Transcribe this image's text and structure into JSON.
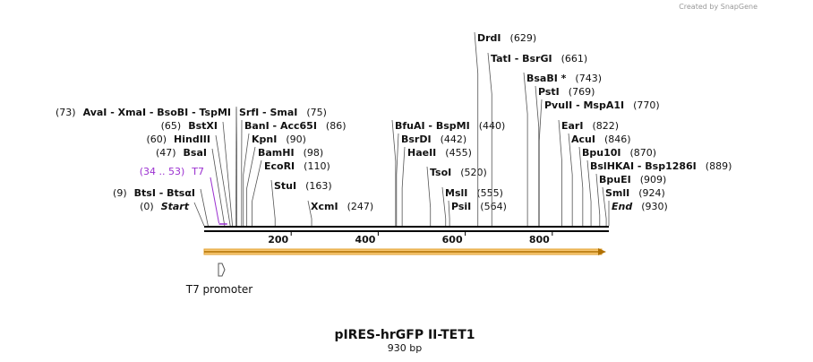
{
  "watermark": "Created by SnapGene",
  "map": {
    "title": "pIRES-hrGFP II-TET1",
    "length": 930,
    "length_label": "930 bp",
    "ticks": [
      200,
      400,
      600,
      800
    ],
    "sites_left": [
      {
        "name": "AvaI  -  XmaI  -  BsoBI  -  TspMI",
        "pos": 73,
        "pos_label": "(73)"
      },
      {
        "name": "BstXI",
        "pos": 65,
        "pos_label": "(65)"
      },
      {
        "name": "HindIII",
        "pos": 60,
        "pos_label": "(60)"
      },
      {
        "name": "BsaI",
        "pos": 47,
        "pos_label": "(47)"
      },
      {
        "name": "BtsI  -  BtsαI",
        "pos": 9,
        "pos_label": "(9)"
      },
      {
        "name": "Start",
        "pos": 0,
        "pos_label": "(0)"
      }
    ],
    "sites_right": [
      {
        "name": "SrfI  -  SmaI",
        "pos": 75,
        "pos_label": "(75)"
      },
      {
        "name": "BanI  -  Acc65I",
        "pos": 86,
        "pos_label": "(86)"
      },
      {
        "name": "KpnI",
        "pos": 90,
        "pos_label": "(90)"
      },
      {
        "name": "BamHI",
        "pos": 98,
        "pos_label": "(98)"
      },
      {
        "name": "EcoRI",
        "pos": 110,
        "pos_label": "(110)"
      },
      {
        "name": "StuI",
        "pos": 163,
        "pos_label": "(163)"
      },
      {
        "name": "XcmI",
        "pos": 247,
        "pos_label": "(247)"
      },
      {
        "name": "BfuAI  -  BspMI",
        "pos": 440,
        "pos_label": "(440)"
      },
      {
        "name": "BsrDI",
        "pos": 442,
        "pos_label": "(442)"
      },
      {
        "name": "HaeII",
        "pos": 455,
        "pos_label": "(455)"
      },
      {
        "name": "TsoI",
        "pos": 520,
        "pos_label": "(520)"
      },
      {
        "name": "MslI",
        "pos": 555,
        "pos_label": "(555)"
      },
      {
        "name": "PsiI",
        "pos": 564,
        "pos_label": "(564)"
      },
      {
        "name": "DrdI",
        "pos": 629,
        "pos_label": "(629)"
      },
      {
        "name": "TatI  -  BsrGI",
        "pos": 661,
        "pos_label": "(661)"
      },
      {
        "name": "BsaBI *",
        "pos": 743,
        "pos_label": "(743)"
      },
      {
        "name": "PstI",
        "pos": 769,
        "pos_label": "(769)"
      },
      {
        "name": "PvuII  -  MspA1I",
        "pos": 770,
        "pos_label": "(770)"
      },
      {
        "name": "EarI",
        "pos": 822,
        "pos_label": "(822)"
      },
      {
        "name": "AcuI",
        "pos": 846,
        "pos_label": "(846)"
      },
      {
        "name": "Bpu10I",
        "pos": 870,
        "pos_label": "(870)"
      },
      {
        "name": "BslHKAI  -  Bsp1286I",
        "pos": 889,
        "pos_label": "(889)"
      },
      {
        "name": "BpuEI",
        "pos": 909,
        "pos_label": "(909)"
      },
      {
        "name": "SmlI",
        "pos": 924,
        "pos_label": "(924)"
      },
      {
        "name": "End",
        "pos": 930,
        "pos_label": "(930)"
      }
    ],
    "primer": {
      "label": "T7",
      "range_label": "(34 .. 53)",
      "start": 34,
      "end": 53
    },
    "feature": {
      "label": "T7 promoter"
    }
  }
}
